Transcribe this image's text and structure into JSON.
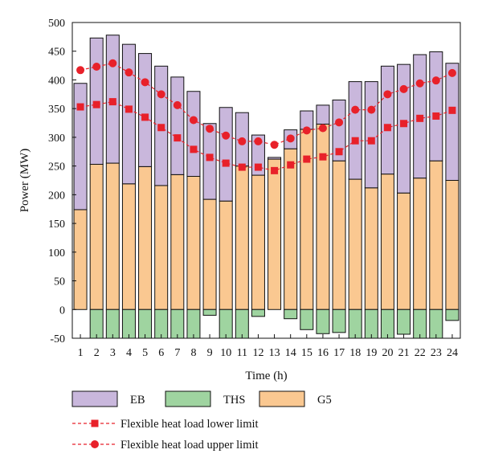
{
  "chart_data": {
    "type": "bar",
    "title": "",
    "xlabel": "Time (h)",
    "ylabel": "Power (MW)",
    "ylim": [
      -50,
      500
    ],
    "yticks": [
      -50,
      0,
      50,
      100,
      150,
      200,
      250,
      300,
      350,
      400,
      450,
      500
    ],
    "categories": [
      "1",
      "2",
      "3",
      "4",
      "5",
      "6",
      "7",
      "8",
      "9",
      "10",
      "11",
      "12",
      "13",
      "14",
      "15",
      "16",
      "17",
      "18",
      "19",
      "20",
      "21",
      "22",
      "23",
      "24"
    ],
    "stack_order": [
      "G5",
      "EB"
    ],
    "series": [
      {
        "name": "EB",
        "kind": "bar",
        "color": "#c9b7dc",
        "values": [
          220,
          220,
          223,
          243,
          197,
          208,
          170,
          148,
          132,
          163,
          93,
          70,
          3,
          33,
          32,
          33,
          106,
          170,
          185,
          188,
          224,
          215,
          190,
          204
        ]
      },
      {
        "name": "THS",
        "kind": "bar",
        "color": "#9fd4a0",
        "values": [
          0,
          -50,
          -50,
          -50,
          -50,
          -50,
          -50,
          -50,
          -10,
          -50,
          -50,
          -12,
          0,
          -16,
          -35,
          -42,
          -40,
          -50,
          -50,
          -50,
          -43,
          -50,
          -50,
          -19
        ]
      },
      {
        "name": "G5",
        "kind": "bar",
        "color": "#fac891",
        "values": [
          174,
          253,
          255,
          219,
          249,
          216,
          235,
          232,
          192,
          189,
          250,
          234,
          262,
          280,
          314,
          323,
          259,
          227,
          212,
          236,
          203,
          229,
          259,
          225
        ]
      },
      {
        "name": "Flexible heat load lower limit",
        "kind": "line",
        "marker": "square",
        "color": "#e8212a",
        "values": [
          353,
          357,
          362,
          349,
          335,
          317,
          299,
          279,
          265,
          255,
          248,
          248,
          242,
          252,
          262,
          266,
          275,
          294,
          294,
          317,
          324,
          333,
          337,
          347
        ]
      },
      {
        "name": "Flexible heat load upper limit",
        "kind": "line",
        "marker": "circle",
        "color": "#e8212a",
        "values": [
          417,
          423,
          429,
          413,
          396,
          375,
          356,
          330,
          315,
          303,
          293,
          293,
          287,
          298,
          312,
          316,
          326,
          348,
          348,
          375,
          384,
          394,
          399,
          412
        ]
      }
    ],
    "legend": {
      "position": "bottom",
      "bar_entries": [
        "EB",
        "THS",
        "G5"
      ],
      "line_entries": [
        "Flexible heat load lower limit",
        "Flexible heat load upper limit"
      ]
    },
    "grid": false
  }
}
